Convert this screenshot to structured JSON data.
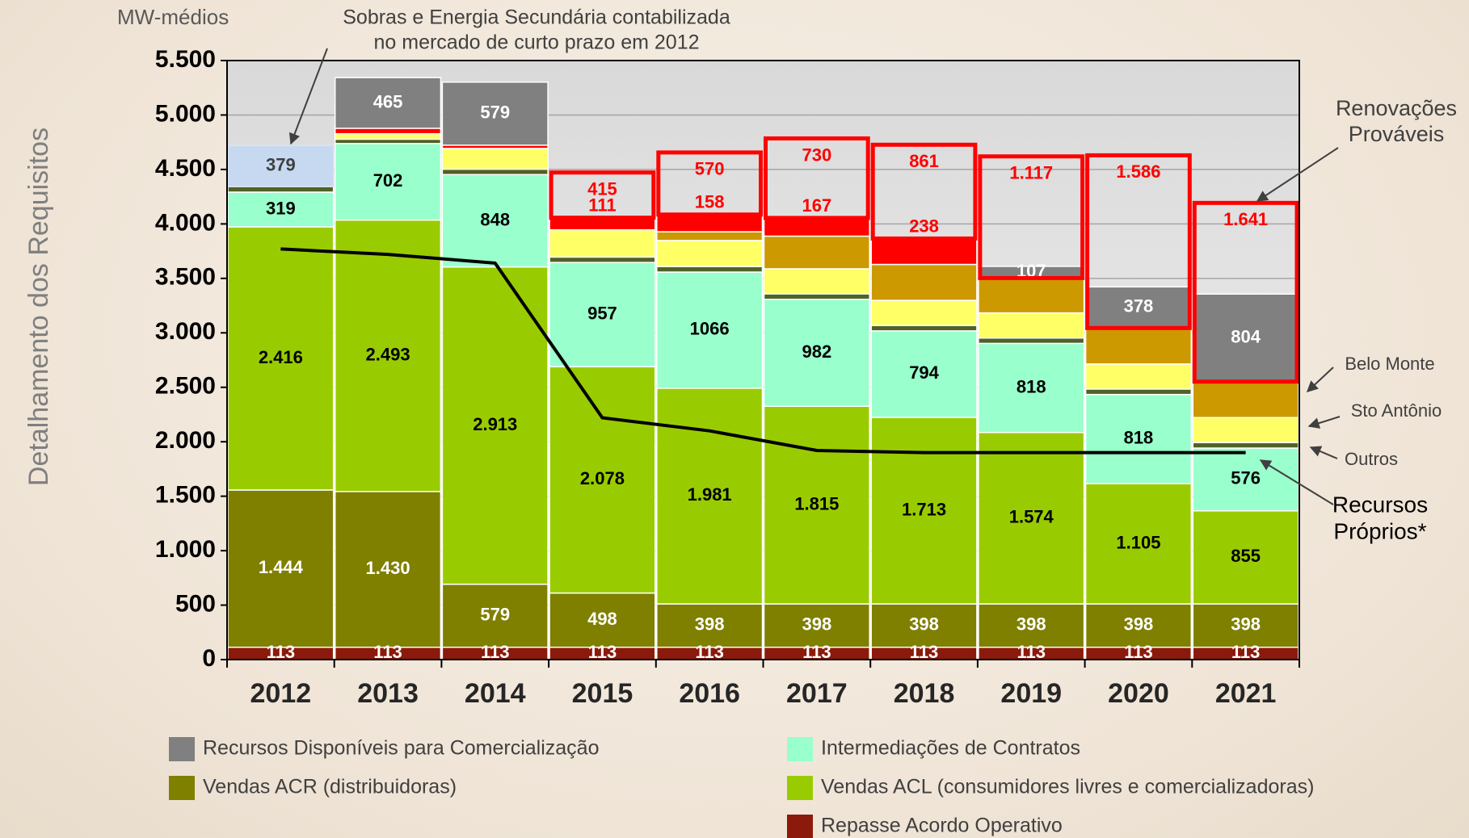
{
  "chart_data": {
    "type": "bar",
    "stacked": true,
    "y_label": "Detalhamento dos Requisitos",
    "unit_label": "MW-médios",
    "categories": [
      "2012",
      "2013",
      "2014",
      "2015",
      "2016",
      "2017",
      "2018",
      "2019",
      "2020",
      "2021"
    ],
    "ylim": [
      0,
      5500
    ],
    "yticks": [
      0,
      500,
      {
        "value": 1000,
        "label": "1.000"
      },
      {
        "value": 1500,
        "label": "1.500"
      },
      {
        "value": 2000,
        "label": "2.000"
      },
      {
        "value": 2500,
        "label": "2.500"
      },
      {
        "value": 3000,
        "label": "3.000"
      },
      {
        "value": 3500,
        "label": "3.500"
      },
      {
        "value": 4000,
        "label": "4.000"
      },
      {
        "value": 4500,
        "label": "4.500"
      },
      {
        "value": 5000,
        "label": "5.000"
      },
      {
        "value": 5500,
        "label": "5.500"
      }
    ],
    "grid": true,
    "series": [
      {
        "name": "Repasse Acordo Operativo",
        "color": "#8b1a0c",
        "values": [
          113,
          113,
          113,
          113,
          113,
          113,
          113,
          113,
          113,
          113
        ]
      },
      {
        "name": "Vendas ACR (distribuidoras)",
        "color": "#7f7f00",
        "values": [
          1444,
          1430,
          579,
          498,
          398,
          398,
          398,
          398,
          398,
          398
        ],
        "value_labels": [
          "1.444",
          "1.430",
          "579",
          "498",
          "398",
          "398",
          "398",
          "398",
          "398",
          "398"
        ]
      },
      {
        "name": "Vendas ACL (consumidores livres e comercializadoras)",
        "color": "#99cc00",
        "values": [
          2416,
          2493,
          2913,
          2078,
          1981,
          1815,
          1713,
          1574,
          1105,
          855
        ],
        "value_labels": [
          "2.416",
          "2.493",
          "2.913",
          "2.078",
          "1.981",
          "1.815",
          "1.713",
          "1.574",
          "1.105",
          "855"
        ]
      },
      {
        "name": "Intermediações de Contratos",
        "color": "#99ffcc",
        "values": [
          319,
          702,
          848,
          957,
          1066,
          982,
          794,
          818,
          818,
          576
        ]
      },
      {
        "color": "#4f6228",
        "values": [
          50,
          40,
          50,
          50,
          50,
          50,
          50,
          50,
          50,
          50
        ]
      },
      {
        "color": "#ffff66",
        "values": [
          null,
          50,
          190,
          250,
          240,
          230,
          230,
          230,
          230,
          230
        ]
      },
      {
        "color": "#cc9900",
        "values": [
          null,
          null,
          null,
          null,
          80,
          300,
          330,
          320,
          330,
          330
        ]
      },
      {
        "color": "#ff0000",
        "values": [
          null,
          50,
          30,
          111,
          158,
          167,
          238,
          null,
          null,
          null
        ],
        "value_labels": [
          null,
          null,
          null,
          "111",
          "158",
          "167",
          "238",
          null,
          null,
          null
        ]
      },
      {
        "color": "#c6d9f1",
        "values": [
          379,
          null,
          null,
          null,
          null,
          null,
          null,
          null,
          null,
          null
        ]
      },
      {
        "name": "Recursos Disponíveis para Comercialização",
        "color": "#808080",
        "values": [
          null,
          465,
          579,
          null,
          null,
          null,
          null,
          107,
          378,
          804
        ]
      },
      {
        "color": "#ff0000",
        "style": "outline",
        "values": [
          null,
          null,
          null,
          415,
          570,
          730,
          861,
          1117,
          1586,
          1641
        ],
        "value_labels": [
          null,
          null,
          null,
          "415",
          "570",
          "730",
          "861",
          "1.117",
          "1.586",
          "1.641"
        ]
      },
      {
        "type": "line",
        "color": "#000000",
        "values": [
          3770,
          3720,
          3640,
          2220,
          2100,
          1920,
          1900,
          1900,
          1900,
          1900
        ]
      }
    ],
    "annotations": [
      {
        "lines": [
          "Sobras e Energia Secundária contabilizada",
          "no mercado de curto prazo em 2012"
        ]
      },
      {
        "lines": [
          "Renovações",
          "Prováveis"
        ]
      },
      {
        "lines": [
          "Belo Monte"
        ]
      },
      {
        "lines": [
          "Sto Antônio"
        ]
      },
      {
        "lines": [
          "Outros"
        ]
      },
      {
        "lines": [
          "Recursos",
          "Próprios*"
        ]
      }
    ]
  }
}
